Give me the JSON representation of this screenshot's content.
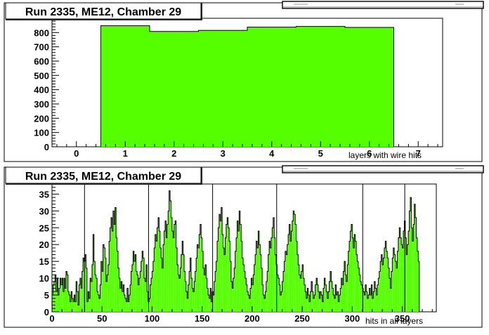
{
  "chart_data": [
    {
      "type": "bar",
      "title": "Run 2335, ME12, Chamber 29",
      "xlabel": "layers with wire hits",
      "ylabel": "",
      "xlim": [
        -0.5,
        7.5
      ],
      "ylim": [
        0,
        900
      ],
      "x_ticks": [
        0,
        1,
        2,
        3,
        4,
        5,
        6,
        7
      ],
      "y_ticks": [
        0,
        100,
        200,
        300,
        400,
        500,
        600,
        700,
        800
      ],
      "bin_width": 1,
      "categories": [
        1,
        2,
        3,
        4,
        5,
        6
      ],
      "values": [
        848,
        808,
        815,
        838,
        843,
        836
      ],
      "bar_color": "#55ff00",
      "grid": false,
      "legend": "stats box top-right (text unreadable)"
    },
    {
      "type": "bar",
      "title": "Run 2335, ME12, Chamber 29",
      "xlabel": "hits in all layers",
      "ylabel": "",
      "xlim": [
        0,
        384
      ],
      "ylim": [
        0,
        38
      ],
      "x_ticks": [
        0,
        50,
        100,
        150,
        200,
        250,
        300,
        350
      ],
      "y_ticks": [
        0,
        5,
        10,
        15,
        20,
        25,
        30,
        35
      ],
      "bin_width": 1,
      "x_start": 0,
      "values": [
        5,
        8,
        9,
        11,
        6,
        10,
        5,
        7,
        10,
        8,
        10,
        6,
        10,
        7,
        12,
        11,
        6,
        5,
        3,
        6,
        4,
        3,
        5,
        3,
        9,
        6,
        2,
        8,
        10,
        7,
        12,
        16,
        15,
        17,
        13,
        3,
        6,
        4,
        10,
        9,
        14,
        23,
        15,
        11,
        10,
        6,
        5,
        4,
        8,
        15,
        12,
        20,
        19,
        16,
        9,
        11,
        14,
        21,
        25,
        28,
        24,
        30,
        26,
        31,
        22,
        18,
        13,
        10,
        7,
        9,
        6,
        8,
        5,
        4,
        3,
        7,
        3,
        5,
        8,
        12,
        14,
        18,
        15,
        17,
        12,
        11,
        8,
        10,
        12,
        15,
        18,
        16,
        10,
        9,
        14,
        6,
        3,
        4,
        8,
        10,
        12,
        15,
        19,
        23,
        21,
        25,
        28,
        24,
        19,
        16,
        13,
        20,
        24,
        27,
        22,
        26,
        30,
        36,
        33,
        28,
        24,
        22,
        26,
        27,
        19,
        14,
        11,
        10,
        13,
        17,
        21,
        17,
        12,
        9,
        6,
        4,
        8,
        12,
        16,
        10,
        7,
        6,
        9,
        12,
        16,
        20,
        19,
        23,
        26,
        22,
        18,
        13,
        11,
        14,
        10,
        7,
        5,
        4,
        7,
        3,
        6,
        5,
        9,
        12,
        15,
        21,
        25,
        29,
        27,
        31,
        23,
        19,
        17,
        22,
        26,
        28,
        25,
        21,
        15,
        9,
        7,
        10,
        13,
        18,
        22,
        27,
        24,
        30,
        26,
        21,
        16,
        14,
        12,
        10,
        8,
        6,
        5,
        4,
        7,
        10,
        8,
        11,
        14,
        17,
        21,
        19,
        24,
        20,
        17,
        13,
        8,
        5,
        4,
        6,
        9,
        12,
        17,
        21,
        19,
        22,
        25,
        28,
        22,
        17,
        14,
        11,
        10,
        8,
        5,
        6,
        9,
        12,
        15,
        18,
        17,
        20,
        23,
        26,
        21,
        24,
        27,
        30,
        29,
        26,
        21,
        17,
        14,
        11,
        10,
        12,
        14,
        10,
        8,
        6,
        4,
        7,
        5,
        3,
        6,
        9,
        6,
        4,
        5,
        8,
        10,
        8,
        6,
        4,
        6,
        5,
        3,
        7,
        10,
        8,
        6,
        4,
        6,
        9,
        12,
        9,
        7,
        5,
        4,
        8,
        5,
        6,
        3,
        5,
        7,
        10,
        8,
        12,
        15,
        11,
        9,
        14,
        18,
        21,
        24,
        26,
        22,
        19,
        23,
        21,
        17,
        15,
        13,
        11,
        9,
        8,
        7,
        6,
        5,
        8,
        6,
        4,
        5,
        7,
        5,
        8,
        4,
        6,
        9,
        7,
        5,
        8,
        10,
        12,
        15,
        17,
        14,
        16,
        19,
        21,
        18,
        16,
        13,
        10,
        7,
        12,
        16,
        19,
        17,
        15,
        13,
        18,
        22,
        25,
        22,
        20,
        19,
        24,
        27,
        22,
        17,
        20,
        24,
        30,
        34,
        25,
        21,
        26,
        32,
        28,
        22,
        18,
        15
      ],
      "spike_bins": [
        32,
        96,
        160,
        224,
        310,
        352
      ],
      "bar_color": "#55ff00",
      "grid": false,
      "legend": "stats box top-right (text unreadable)"
    }
  ]
}
